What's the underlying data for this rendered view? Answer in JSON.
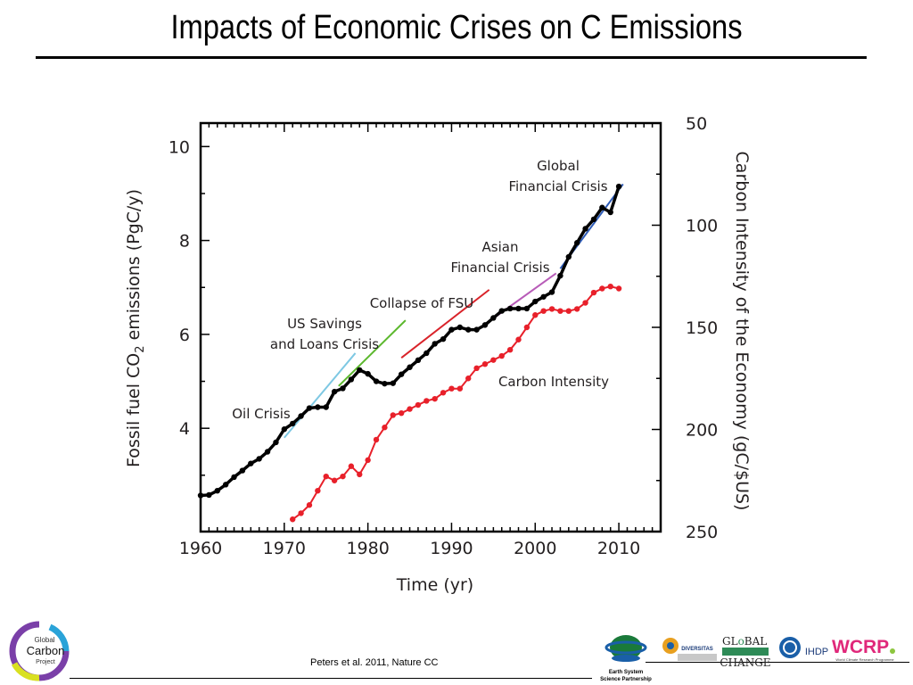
{
  "slide": {
    "title": "Impacts of Economic Crises on C Emissions",
    "citation": "Peters et al. 2011, Nature CC"
  },
  "logos": {
    "gcp": {
      "line1": "Global",
      "line2": "Carbon",
      "line3": "Project"
    },
    "essp": {
      "line1": "Earth System",
      "line2": "Science Partnership"
    },
    "diversitas": "DIVERSITAS",
    "igbp_line1": "GL",
    "igbp_line1b": "BAL",
    "igbp_line2": "CHANGE",
    "ihdp": "IHDP",
    "wcrp": "WCRP",
    "wcrp_sub": "World Climate Research Programme"
  },
  "colors": {
    "emissions": "#000000",
    "carbon_intensity": "#e8202a",
    "oil_crisis": "#7ec8e3",
    "us_savings": "#5cb82e",
    "collapse_fsu": "#d9232a",
    "asian": "#b85cb8",
    "global_financial": "#2e5cb8"
  },
  "chart_data": {
    "type": "line",
    "xlabel": "Time (yr)",
    "ylabel_left_parts": [
      "Fossil fuel CO",
      "2",
      " emissions (PgC/y)"
    ],
    "ylabel_right": "Carbon Intensity of the Economy (gC/$US)",
    "xlim": [
      1960,
      2015
    ],
    "ylim_left": [
      1.8,
      10.5
    ],
    "ylim_right_inverted": [
      250,
      50
    ],
    "x_ticks": [
      1960,
      1970,
      1980,
      1990,
      2000,
      2010
    ],
    "y_ticks_left": [
      4,
      6,
      8,
      10
    ],
    "y_ticks_right": [
      50,
      100,
      150,
      200,
      250
    ],
    "series": [
      {
        "name": "",
        "axis": "left",
        "x": [
          1960,
          1961,
          1962,
          1963,
          1964,
          1965,
          1966,
          1967,
          1968,
          1969,
          1970,
          1971,
          1972,
          1973,
          1974,
          1975,
          1976,
          1977,
          1978,
          1979,
          1980,
          1981,
          1982,
          1983,
          1984,
          1985,
          1986,
          1987,
          1988,
          1989,
          1990,
          1991,
          1992,
          1993,
          1994,
          1995,
          1996,
          1997,
          1998,
          1999,
          2000,
          2001,
          2002,
          2003,
          2004,
          2005,
          2006,
          2007,
          2008,
          2009,
          2010
        ],
        "values": [
          2.57,
          2.58,
          2.67,
          2.8,
          2.96,
          3.1,
          3.25,
          3.35,
          3.5,
          3.7,
          3.98,
          4.1,
          4.26,
          4.43,
          4.45,
          4.45,
          4.78,
          4.85,
          5.04,
          5.24,
          5.16,
          5.0,
          4.95,
          4.96,
          5.15,
          5.3,
          5.45,
          5.6,
          5.8,
          5.9,
          6.1,
          6.15,
          6.1,
          6.1,
          6.2,
          6.35,
          6.5,
          6.55,
          6.55,
          6.55,
          6.7,
          6.8,
          6.9,
          7.25,
          7.65,
          7.95,
          8.25,
          8.45,
          8.7,
          8.6,
          9.15
        ]
      },
      {
        "name": "Carbon Intensity",
        "axis": "right",
        "x": [
          1971,
          1972,
          1973,
          1974,
          1975,
          1976,
          1977,
          1978,
          1979,
          1980,
          1981,
          1982,
          1983,
          1984,
          1985,
          1986,
          1987,
          1988,
          1989,
          1990,
          1991,
          1992,
          1993,
          1994,
          1995,
          1996,
          1997,
          1998,
          1999,
          2000,
          2001,
          2002,
          2003,
          2004,
          2005,
          2006,
          2007,
          2008,
          2009,
          2010
        ],
        "values": [
          244,
          241,
          237,
          230,
          223,
          225,
          223,
          218,
          222,
          215,
          205,
          199,
          193,
          192,
          190,
          188,
          186,
          185,
          182,
          180,
          180,
          175,
          170,
          168,
          166,
          164,
          161,
          156,
          150,
          144,
          142,
          141,
          142,
          142,
          141,
          138,
          133,
          131,
          130,
          131
        ]
      }
    ],
    "annotations": [
      {
        "text": "Oil Crisis",
        "trend_x": [
          1970,
          1978.5
        ],
        "trend_y": [
          3.8,
          5.6
        ]
      },
      {
        "text": "US Savings",
        "text2": "and Loans Crisis",
        "trend_x": [
          1976.5,
          1984.5
        ],
        "trend_y": [
          4.9,
          6.3
        ]
      },
      {
        "text": "Collapse of FSU",
        "trend_x": [
          1984,
          1994.5
        ],
        "trend_y": [
          5.5,
          6.95
        ]
      },
      {
        "text": "Asian",
        "text2": "Financial Crisis",
        "trend_x": [
          1993.5,
          2002.5
        ],
        "trend_y": [
          6.15,
          7.3
        ]
      },
      {
        "text": "Global",
        "text2": "Financial Crisis",
        "trend_x": [
          2003,
          2010.5
        ],
        "trend_y": [
          7.4,
          9.2
        ]
      }
    ]
  }
}
